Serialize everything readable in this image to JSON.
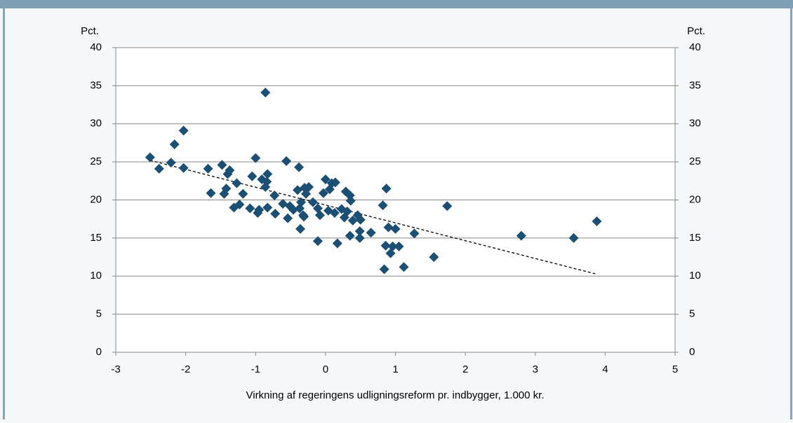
{
  "chart_data": {
    "type": "scatter",
    "xlabel": "Virkning af regeringens udligningsreform pr. indbygger, 1.000 kr.",
    "ylabel": "Pct.",
    "y2label": "Pct.",
    "xlim": [
      -3,
      5
    ],
    "xticks": [
      -3,
      -2,
      -1,
      0,
      1,
      2,
      3,
      4,
      5
    ],
    "ylim": [
      0,
      40
    ],
    "yticks": [
      0,
      5,
      10,
      15,
      20,
      25,
      30,
      35,
      40
    ],
    "y2lim": [
      0,
      40
    ],
    "y2ticks": [
      0,
      5,
      10,
      15,
      20,
      25,
      30,
      35,
      40
    ],
    "grid": true,
    "color": "#1b4f73",
    "x": [
      -2.51,
      -2.38,
      -2.21,
      -2.16,
      -2.03,
      -2.03,
      -1.68,
      -1.64,
      -1.48,
      -1.45,
      -1.42,
      -1.4,
      -1.37,
      -1.31,
      -1.27,
      -1.23,
      -1.18,
      -1.08,
      -1.05,
      -1.0,
      -0.97,
      -0.95,
      -0.91,
      -0.86,
      -0.86,
      -0.84,
      -0.83,
      -0.83,
      -0.73,
      -0.72,
      -0.61,
      -0.56,
      -0.54,
      -0.51,
      -0.46,
      -0.4,
      -0.38,
      -0.37,
      -0.36,
      -0.35,
      -0.32,
      -0.31,
      -0.3,
      -0.28,
      -0.24,
      -0.18,
      -0.11,
      -0.11,
      -0.08,
      -0.03,
      0.0,
      0.04,
      0.06,
      0.09,
      0.13,
      0.14,
      0.17,
      0.23,
      0.27,
      0.29,
      0.31,
      0.35,
      0.35,
      0.36,
      0.39,
      0.46,
      0.5,
      0.49,
      0.49,
      0.65,
      0.82,
      0.84,
      0.86,
      0.87,
      0.9,
      0.93,
      0.96,
      1.0,
      1.05,
      1.12,
      1.27,
      1.55,
      1.74,
      2.8,
      3.55,
      3.88
    ],
    "values": [
      25.6,
      24.1,
      24.9,
      27.3,
      29.1,
      24.2,
      24.1,
      20.9,
      24.6,
      20.8,
      21.5,
      23.4,
      23.9,
      19.0,
      22.2,
      19.4,
      20.8,
      18.9,
      23.1,
      25.5,
      18.3,
      18.7,
      22.7,
      21.7,
      34.1,
      22.4,
      23.4,
      19.0,
      20.6,
      18.2,
      19.5,
      25.1,
      17.6,
      19.2,
      18.7,
      21.3,
      24.3,
      18.9,
      16.2,
      19.7,
      18.0,
      17.8,
      21.6,
      20.8,
      21.7,
      19.7,
      18.9,
      14.6,
      18.0,
      20.9,
      22.7,
      18.6,
      21.4,
      22.2,
      18.3,
      22.3,
      14.3,
      18.8,
      17.7,
      21.1,
      18.5,
      20.6,
      15.3,
      19.9,
      17.3,
      18.0,
      17.4,
      15.9,
      15.0,
      15.7,
      19.3,
      10.9,
      14.0,
      21.5,
      16.4,
      13.0,
      13.9,
      16.2,
      13.9,
      11.2,
      15.6,
      12.5,
      19.2,
      15.3,
      15.0,
      17.2
    ],
    "trendline": {
      "x": [
        -2.51,
        3.86
      ],
      "y": [
        25.2,
        10.3
      ]
    }
  }
}
